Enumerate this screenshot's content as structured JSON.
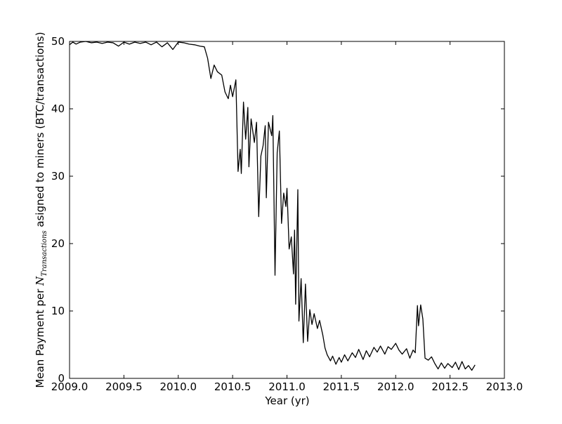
{
  "chart_data": {
    "type": "line",
    "xlabel": "Year (yr)",
    "ylabel": [
      "Mean Payment per ",
      "N",
      "Transactions",
      " asigned to miners (BTC/transactions)"
    ],
    "x": [
      2009.0,
      2009.03,
      2009.06,
      2009.1,
      2009.15,
      2009.2,
      2009.25,
      2009.3,
      2009.35,
      2009.4,
      2009.45,
      2009.5,
      2009.55,
      2009.6,
      2009.65,
      2009.7,
      2009.75,
      2009.8,
      2009.85,
      2009.9,
      2009.95,
      2010.0,
      2010.05,
      2010.1,
      2010.15,
      2010.2,
      2010.24,
      2010.27,
      2010.3,
      2010.33,
      2010.36,
      2010.4,
      2010.43,
      2010.46,
      2010.48,
      2010.5,
      2010.53,
      2010.55,
      2010.57,
      2010.58,
      2010.6,
      2010.62,
      2010.64,
      2010.65,
      2010.67,
      2010.7,
      2010.72,
      2010.74,
      2010.76,
      2010.78,
      2010.8,
      2010.81,
      2010.83,
      2010.86,
      2010.87,
      2010.89,
      2010.91,
      2010.93,
      2010.95,
      2010.97,
      2010.99,
      2011.0,
      2011.02,
      2011.04,
      2011.06,
      2011.07,
      2011.08,
      2011.1,
      2011.11,
      2011.13,
      2011.15,
      2011.17,
      2011.19,
      2011.21,
      2011.23,
      2011.25,
      2011.28,
      2011.3,
      2011.33,
      2011.35,
      2011.37,
      2011.4,
      2011.42,
      2011.45,
      2011.48,
      2011.5,
      2011.53,
      2011.56,
      2011.6,
      2011.63,
      2011.66,
      2011.7,
      2011.73,
      2011.76,
      2011.8,
      2011.83,
      2011.86,
      2011.9,
      2011.93,
      2011.96,
      2012.0,
      2012.03,
      2012.06,
      2012.1,
      2012.13,
      2012.16,
      2012.18,
      2012.2,
      2012.21,
      2012.23,
      2012.25,
      2012.27,
      2012.3,
      2012.33,
      2012.36,
      2012.39,
      2012.42,
      2012.45,
      2012.48,
      2012.52,
      2012.55,
      2012.58,
      2012.61,
      2012.64,
      2012.67,
      2012.7,
      2012.73
    ],
    "series": [
      {
        "color": "#000000",
        "values": [
          49.5,
          49.9,
          49.6,
          49.9,
          50,
          49.8,
          49.9,
          49.7,
          49.9,
          49.8,
          49.3,
          49.9,
          49.6,
          49.9,
          49.7,
          49.9,
          49.5,
          49.9,
          49.2,
          49.8,
          48.8,
          49.9,
          49.8,
          49.6,
          49.5,
          49.3,
          49.2,
          47.5,
          44.5,
          46.5,
          45.5,
          45,
          42.5,
          41.5,
          43.5,
          41.8,
          44.3,
          30.7,
          34,
          30.4,
          41,
          35.5,
          40.2,
          31.4,
          38.5,
          35,
          38,
          24,
          33,
          34.5,
          37.5,
          26.8,
          38,
          36,
          39,
          15.3,
          33.5,
          36.7,
          23,
          27.5,
          25.5,
          28.2,
          19.2,
          21,
          15.5,
          22,
          11,
          28,
          8.5,
          14.8,
          5.3,
          14,
          5.5,
          10.2,
          8,
          9.6,
          7.4,
          8.6,
          6.4,
          4.5,
          3.5,
          2.6,
          3.3,
          2.1,
          3.1,
          2.4,
          3.5,
          2.6,
          3.8,
          3.1,
          4.3,
          2.8,
          4.1,
          3.2,
          4.6,
          3.9,
          4.8,
          3.6,
          4.7,
          4.3,
          5.2,
          4.2,
          3.6,
          4.4,
          3,
          4.2,
          3.8,
          10.8,
          7.8,
          10.9,
          8.8,
          3,
          2.7,
          3.2,
          2.2,
          1.4,
          2.3,
          1.5,
          2.2,
          1.6,
          2.4,
          1.3,
          2.5,
          1.4,
          1.9,
          1.2,
          2
        ]
      }
    ],
    "xlim": [
      2009,
      2013
    ],
    "xticks": [
      {
        "value": 2009,
        "label": "2009.0"
      },
      2009.5,
      {
        "value": 2010,
        "label": "2010.0"
      },
      2010.5,
      {
        "value": 2011,
        "label": "2011.0"
      },
      2011.5,
      {
        "value": 2012,
        "label": "2012.0"
      },
      2012.5,
      {
        "value": 2013,
        "label": "2013.0"
      }
    ],
    "ylim": [
      0,
      50
    ],
    "yticks": [
      0,
      10,
      20,
      30,
      40,
      50
    ],
    "grid": false
  }
}
